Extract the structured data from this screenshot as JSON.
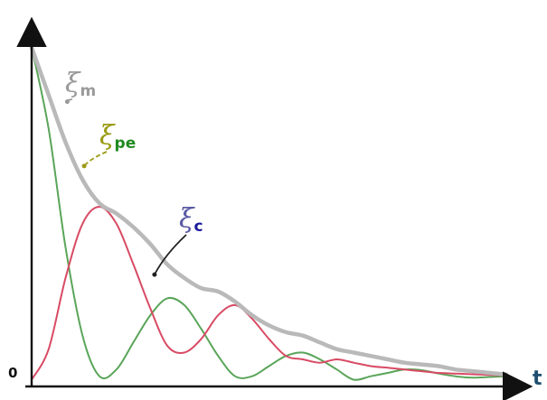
{
  "chart_data": {
    "type": "line",
    "title": "",
    "xlabel": "t",
    "ylabel": "",
    "origin_label": "0",
    "xlim": [
      0,
      5.6
    ],
    "ylim": [
      -0.02,
      1.0
    ],
    "grid": false,
    "x": [
      0.0,
      0.2,
      0.4,
      0.6,
      0.8,
      1.0,
      1.2,
      1.4,
      1.6,
      1.8,
      2.0,
      2.2,
      2.4,
      2.6,
      2.8,
      3.0,
      3.2,
      3.4,
      3.6,
      3.8,
      4.0,
      4.2,
      4.4,
      4.6,
      4.8,
      5.0,
      5.2,
      5.4,
      5.6
    ],
    "series": [
      {
        "name": "ξm",
        "color": "#b9b9b9",
        "values": [
          0.98,
          0.84,
          0.7,
          0.59,
          0.52,
          0.49,
          0.45,
          0.4,
          0.34,
          0.3,
          0.27,
          0.26,
          0.23,
          0.19,
          0.16,
          0.14,
          0.13,
          0.11,
          0.09,
          0.08,
          0.07,
          0.06,
          0.05,
          0.045,
          0.04,
          0.03,
          0.025,
          0.02,
          0.015
        ]
      },
      {
        "name": "ξpe",
        "color": "#5aa55a",
        "values": [
          0.98,
          0.74,
          0.39,
          0.13,
          0.01,
          0.03,
          0.11,
          0.19,
          0.24,
          0.22,
          0.15,
          0.07,
          0.01,
          0.01,
          0.04,
          0.07,
          0.08,
          0.06,
          0.03,
          0.0,
          0.01,
          0.02,
          0.03,
          0.028,
          0.018,
          0.01,
          0.006,
          0.008,
          0.01
        ]
      },
      {
        "name": "ξc",
        "color": "#d84a64",
        "values": [
          0.0,
          0.09,
          0.3,
          0.46,
          0.51,
          0.46,
          0.34,
          0.21,
          0.1,
          0.08,
          0.12,
          0.19,
          0.22,
          0.18,
          0.12,
          0.07,
          0.06,
          0.05,
          0.06,
          0.05,
          0.04,
          0.035,
          0.03,
          0.025,
          0.02,
          0.018,
          0.016,
          0.014,
          0.012
        ]
      }
    ],
    "annotations": [
      {
        "symbol": "ξ",
        "subscript": "m",
        "color": "#9a9a9a",
        "sub_color": "#9a9a9a",
        "points_to_series": 0,
        "x": 0.42,
        "y": 0.82
      },
      {
        "symbol": "ξ",
        "subscript": "pe",
        "color": "#9b9b14",
        "sub_color": "#1f8a1f",
        "points_to_series": 1,
        "x": 0.62,
        "y": 0.63
      },
      {
        "symbol": "ξ",
        "subscript": "c",
        "color": "#5a5aa5",
        "sub_color": "#1a1a9a",
        "points_to_series": 2,
        "x": 1.45,
        "y": 0.31
      }
    ]
  }
}
